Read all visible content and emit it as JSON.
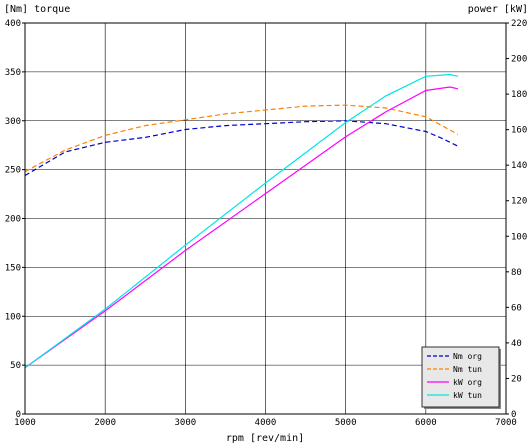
{
  "chart_data": {
    "type": "line",
    "y_left_label": "[Nm] torque",
    "y_right_label": "power [kW]",
    "xlabel": "rpm [rev/min]",
    "xlim": [
      1000,
      7000
    ],
    "ylim_left": [
      0,
      400
    ],
    "ylim_right": [
      0,
      220
    ],
    "x_ticks": [
      "1000",
      "2000",
      "3000",
      "4000",
      "5000",
      "6000",
      "7000"
    ],
    "y_left_ticks": [
      "0",
      "50",
      "100",
      "150",
      "200",
      "250",
      "300",
      "350",
      "400"
    ],
    "y_right_ticks": [
      "0",
      "20",
      "40",
      "60",
      "80",
      "100",
      "120",
      "140",
      "160",
      "180",
      "200",
      "220"
    ],
    "grid": true,
    "legend_position": "bottom-right",
    "series": [
      {
        "name": "Nm org",
        "axis": "left",
        "color": "#0000cc",
        "dash": "dashed",
        "points": [
          [
            1000,
            244
          ],
          [
            1500,
            268
          ],
          [
            2000,
            278
          ],
          [
            2500,
            283
          ],
          [
            3000,
            291
          ],
          [
            3500,
            295
          ],
          [
            4000,
            297
          ],
          [
            4500,
            299
          ],
          [
            5000,
            300
          ],
          [
            5500,
            297
          ],
          [
            6000,
            289
          ],
          [
            6200,
            282
          ],
          [
            6400,
            274
          ]
        ]
      },
      {
        "name": "Nm tun",
        "axis": "left",
        "color": "#ff8000",
        "dash": "dashed",
        "points": [
          [
            1000,
            248
          ],
          [
            1500,
            270
          ],
          [
            2000,
            285
          ],
          [
            2500,
            295
          ],
          [
            3000,
            301
          ],
          [
            3500,
            307
          ],
          [
            4000,
            311
          ],
          [
            4500,
            315
          ],
          [
            5000,
            316
          ],
          [
            5500,
            313
          ],
          [
            6000,
            304
          ],
          [
            6200,
            295
          ],
          [
            6400,
            286
          ]
        ]
      },
      {
        "name": "kW org",
        "axis": "right",
        "color": "#ff00ff",
        "dash": "solid",
        "points": [
          [
            1000,
            26
          ],
          [
            2000,
            58
          ],
          [
            3000,
            92
          ],
          [
            4000,
            124
          ],
          [
            5000,
            156
          ],
          [
            5500,
            170
          ],
          [
            6000,
            182
          ],
          [
            6300,
            184
          ],
          [
            6400,
            183
          ]
        ]
      },
      {
        "name": "kW tun",
        "axis": "right",
        "color": "#00e5e5",
        "dash": "solid",
        "points": [
          [
            1000,
            26
          ],
          [
            2000,
            59
          ],
          [
            3000,
            95
          ],
          [
            4000,
            130
          ],
          [
            5000,
            164
          ],
          [
            5500,
            179
          ],
          [
            6000,
            190
          ],
          [
            6300,
            191
          ],
          [
            6400,
            190
          ]
        ]
      }
    ]
  }
}
